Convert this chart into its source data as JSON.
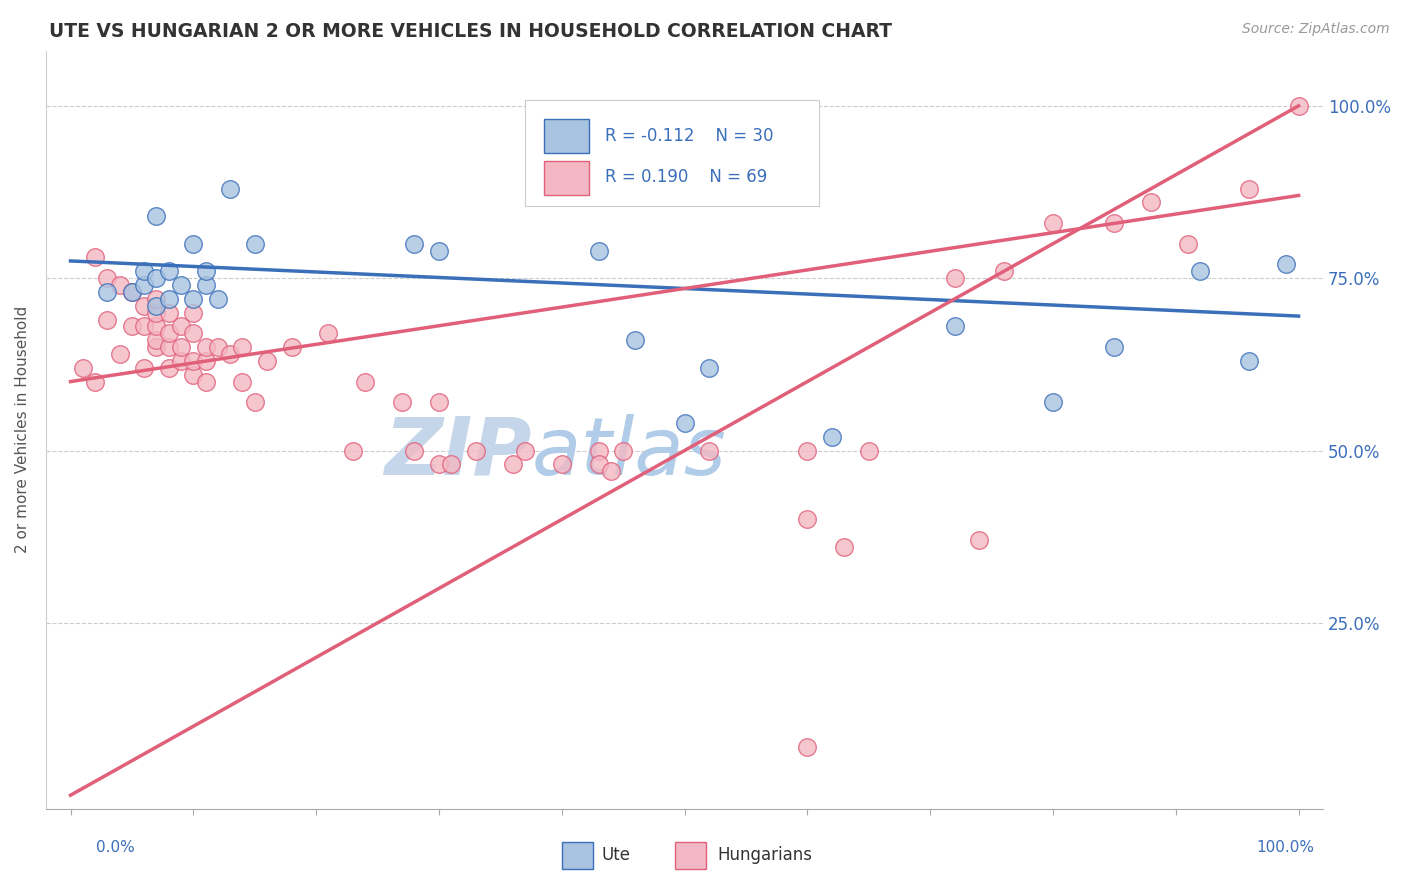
{
  "title": "UTE VS HUNGARIAN 2 OR MORE VEHICLES IN HOUSEHOLD CORRELATION CHART",
  "source": "Source: ZipAtlas.com",
  "ylabel": "2 or more Vehicles in Household",
  "ytick_labels": [
    "100.0%",
    "75.0%",
    "50.0%",
    "25.0%"
  ],
  "ytick_positions": [
    1.0,
    0.75,
    0.5,
    0.25
  ],
  "xlim": [
    -0.02,
    1.02
  ],
  "ylim": [
    -0.02,
    1.08
  ],
  "ute_color": "#a8c4e0",
  "hun_color": "#f4b8c4",
  "ute_line_color": "#3b6fba",
  "hun_line_color": "#e0607a",
  "watermark_zip": "ZIP",
  "watermark_atlas": "atlas",
  "watermark_color": "#c8d8f0",
  "legend_r_ute": "R = -0.112",
  "legend_n_ute": "N = 30",
  "legend_r_hun": "R = 0.190",
  "legend_n_hun": "N = 69",
  "ute_x": [
    0.03,
    0.05,
    0.06,
    0.06,
    0.07,
    0.07,
    0.07,
    0.08,
    0.08,
    0.09,
    0.1,
    0.1,
    0.11,
    0.11,
    0.12,
    0.13,
    0.15,
    0.28,
    0.3,
    0.43,
    0.46,
    0.5,
    0.52,
    0.62,
    0.72,
    0.8,
    0.85,
    0.92,
    0.96,
    0.99
  ],
  "ute_y": [
    0.73,
    0.73,
    0.74,
    0.76,
    0.71,
    0.75,
    0.84,
    0.72,
    0.76,
    0.74,
    0.72,
    0.8,
    0.74,
    0.76,
    0.72,
    0.88,
    0.8,
    0.8,
    0.79,
    0.79,
    0.66,
    0.54,
    0.62,
    0.52,
    0.68,
    0.57,
    0.65,
    0.76,
    0.63,
    0.77
  ],
  "hun_x": [
    0.01,
    0.02,
    0.02,
    0.03,
    0.03,
    0.04,
    0.04,
    0.05,
    0.05,
    0.06,
    0.06,
    0.06,
    0.07,
    0.07,
    0.07,
    0.07,
    0.07,
    0.08,
    0.08,
    0.08,
    0.08,
    0.09,
    0.09,
    0.09,
    0.1,
    0.1,
    0.1,
    0.1,
    0.11,
    0.11,
    0.11,
    0.12,
    0.13,
    0.14,
    0.14,
    0.15,
    0.16,
    0.18,
    0.21,
    0.23,
    0.24,
    0.27,
    0.28,
    0.3,
    0.3,
    0.31,
    0.33,
    0.36,
    0.37,
    0.4,
    0.43,
    0.43,
    0.44,
    0.45,
    0.52,
    0.6,
    0.6,
    0.6,
    0.63,
    0.65,
    0.72,
    0.74,
    0.76,
    0.8,
    0.85,
    0.88,
    0.91,
    0.96,
    1.0
  ],
  "hun_y": [
    0.62,
    0.6,
    0.78,
    0.69,
    0.75,
    0.64,
    0.74,
    0.68,
    0.73,
    0.62,
    0.68,
    0.71,
    0.65,
    0.66,
    0.68,
    0.7,
    0.72,
    0.62,
    0.65,
    0.67,
    0.7,
    0.63,
    0.65,
    0.68,
    0.61,
    0.63,
    0.67,
    0.7,
    0.6,
    0.63,
    0.65,
    0.65,
    0.64,
    0.6,
    0.65,
    0.57,
    0.63,
    0.65,
    0.67,
    0.5,
    0.6,
    0.57,
    0.5,
    0.57,
    0.48,
    0.48,
    0.5,
    0.48,
    0.5,
    0.48,
    0.5,
    0.48,
    0.47,
    0.5,
    0.5,
    0.07,
    0.4,
    0.5,
    0.36,
    0.5,
    0.75,
    0.37,
    0.76,
    0.83,
    0.83,
    0.86,
    0.8,
    0.88,
    1.0
  ],
  "ute_line_x0": 0.0,
  "ute_line_x1": 1.0,
  "ute_line_y0": 0.775,
  "ute_line_y1": 0.695,
  "hun_line_x0": 0.0,
  "hun_line_x1": 1.0,
  "hun_line_y0": 0.6,
  "hun_line_y1": 0.87
}
